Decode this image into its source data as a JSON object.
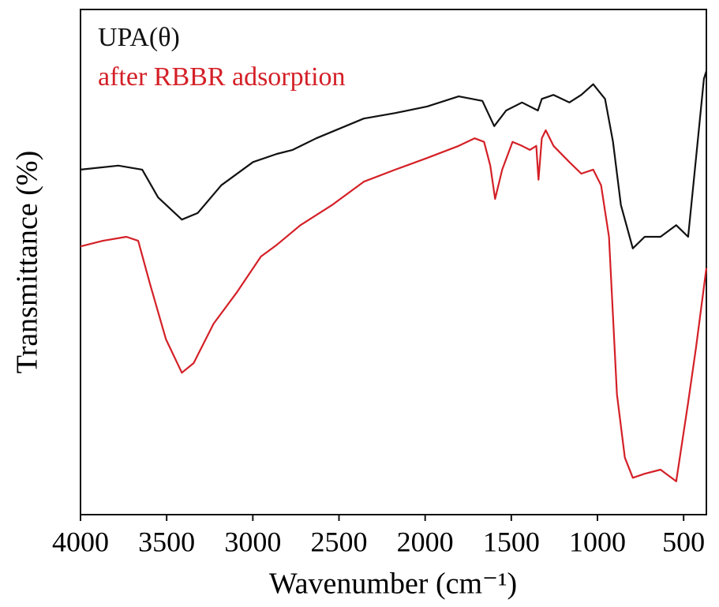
{
  "chart_data": {
    "type": "line",
    "x_label": "Wavenumber (cm⁻¹)",
    "y_label": "Transmittance (%)",
    "xlim": [
      4000,
      368
    ],
    "xticks": [
      4000,
      3500,
      3000,
      2500,
      2000,
      1500,
      1000,
      500
    ],
    "ylim": [
      0,
      100
    ],
    "series": [
      {
        "name": "UPA(θ)",
        "color": "#111111",
        "x": [
          4000,
          3780,
          3642,
          3550,
          3412,
          3320,
          3183,
          2999,
          2861,
          2769,
          2632,
          2356,
          2173,
          1989,
          1805,
          1668,
          1599,
          1530,
          1438,
          1346,
          1323,
          1255,
          1163,
          1094,
          1025,
          956,
          910,
          864,
          795,
          726,
          634,
          543,
          474,
          428,
          382,
          368
        ],
        "values": [
          68.3,
          69.1,
          68.3,
          62.8,
          58.4,
          59.7,
          65.2,
          69.8,
          71.4,
          72.2,
          74.5,
          78.4,
          79.5,
          80.8,
          82.8,
          81.9,
          76.9,
          80.0,
          81.6,
          80.0,
          82.3,
          83.1,
          81.6,
          83.1,
          85.2,
          82.3,
          73.8,
          61.3,
          52.7,
          55.0,
          55.0,
          57.3,
          55.0,
          70.6,
          86.3,
          87.8
        ]
      },
      {
        "name": "after RBBR adsorption",
        "color": "#d42027",
        "x": [
          4000,
          3871,
          3734,
          3665,
          3596,
          3504,
          3412,
          3343,
          3228,
          3091,
          2953,
          2861,
          2724,
          2540,
          2356,
          2173,
          1989,
          1805,
          1713,
          1658,
          1622,
          1594,
          1553,
          1493,
          1438,
          1392,
          1355,
          1342,
          1323,
          1300,
          1255,
          1163,
          1094,
          1025,
          979,
          933,
          887,
          841,
          795,
          726,
          634,
          543,
          474,
          428,
          368
        ],
        "values": [
          53.1,
          54.2,
          55.0,
          54.2,
          45.6,
          34.7,
          28.1,
          30.0,
          37.8,
          44.1,
          51.1,
          53.4,
          57.3,
          61.3,
          65.9,
          68.3,
          70.6,
          73.0,
          74.5,
          73.8,
          69.1,
          62.5,
          68.3,
          73.8,
          73.0,
          72.2,
          73.0,
          66.3,
          74.5,
          76.1,
          73.0,
          69.8,
          67.5,
          68.3,
          65.2,
          55.0,
          23.8,
          11.3,
          7.3,
          8.1,
          8.9,
          6.6,
          22.2,
          33.1,
          48.8
        ]
      }
    ]
  }
}
